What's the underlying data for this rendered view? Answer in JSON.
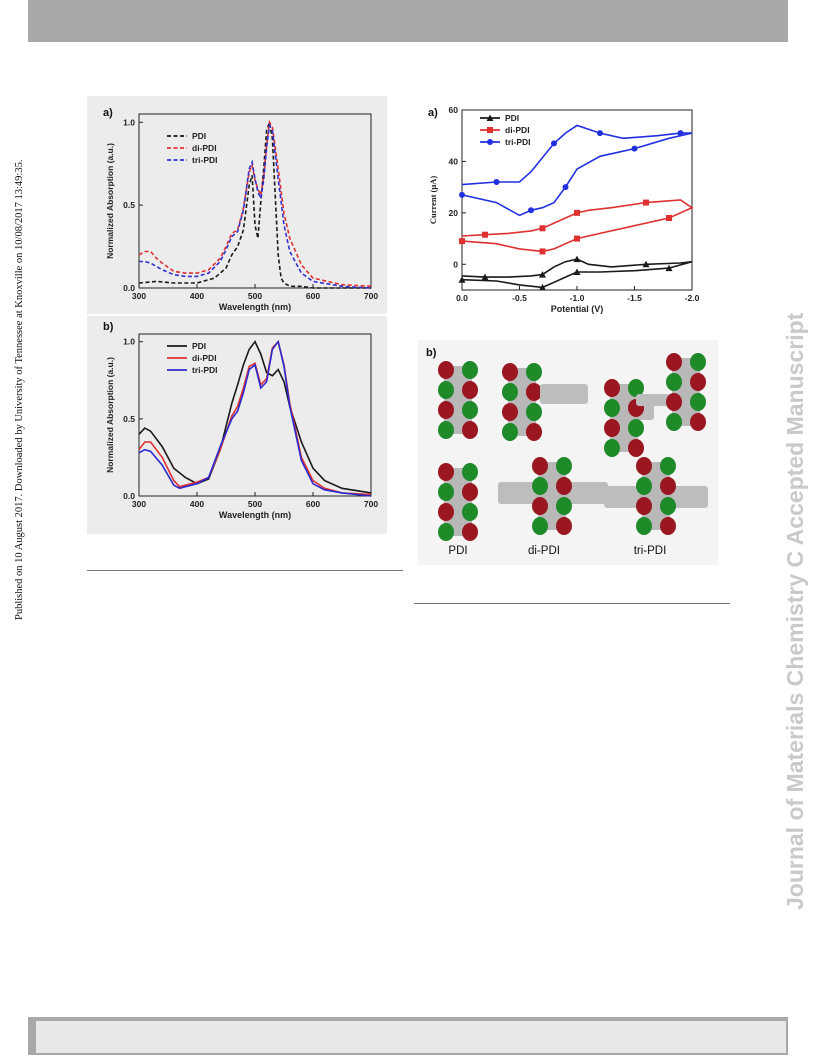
{
  "page": {
    "side_note": "Published on 10 August 2017. Downloaded by University of Tennessee at Knoxville on 10/08/2017 13:49:35.",
    "watermark": "Journal of Materials Chemistry C Accepted Manuscript",
    "molecule_labels": [
      "PDI",
      "di-PDI",
      "tri-PDI"
    ],
    "panel_b_right_label": "b)"
  },
  "chart_data": [
    {
      "type": "line",
      "panel": "a)",
      "xlabel": "Wavelength (nm)",
      "ylabel": "Normalized Absorption (a.u.)",
      "xlim": [
        300,
        700
      ],
      "ylim": [
        0,
        1.05
      ],
      "xticks": [
        "300",
        "400",
        "500",
        "600",
        "700"
      ],
      "yticks": [
        "0.0",
        "0.5",
        "1.0"
      ],
      "legend": "top-left",
      "line_style": "dashed",
      "series": [
        {
          "name": "PDI",
          "color": "#1a1a1a",
          "x": [
            300,
            330,
            360,
            400,
            430,
            450,
            460,
            470,
            480,
            490,
            495,
            500,
            505,
            510,
            515,
            520,
            525,
            530,
            535,
            540,
            545,
            550,
            560,
            580,
            600,
            650,
            700
          ],
          "y": [
            0.03,
            0.04,
            0.03,
            0.03,
            0.06,
            0.12,
            0.2,
            0.25,
            0.35,
            0.62,
            0.68,
            0.38,
            0.3,
            0.52,
            0.72,
            0.95,
            1.0,
            0.9,
            0.55,
            0.2,
            0.06,
            0.03,
            0.01,
            0.01,
            0.0,
            0.0,
            0.0
          ]
        },
        {
          "name": "di-PDI",
          "color": "#e03030",
          "x": [
            300,
            310,
            320,
            330,
            340,
            360,
            380,
            400,
            420,
            440,
            450,
            460,
            470,
            480,
            490,
            495,
            500,
            505,
            510,
            515,
            520,
            525,
            530,
            540,
            550,
            560,
            580,
            600,
            650,
            700
          ],
          "y": [
            0.2,
            0.22,
            0.22,
            0.18,
            0.15,
            0.1,
            0.09,
            0.09,
            0.11,
            0.18,
            0.25,
            0.33,
            0.35,
            0.48,
            0.7,
            0.74,
            0.65,
            0.6,
            0.56,
            0.67,
            0.86,
            1.0,
            0.97,
            0.72,
            0.45,
            0.3,
            0.14,
            0.06,
            0.02,
            0.01
          ]
        },
        {
          "name": "tri-PDI",
          "color": "#3030d0",
          "x": [
            300,
            310,
            320,
            330,
            340,
            360,
            380,
            400,
            420,
            440,
            450,
            460,
            470,
            480,
            490,
            495,
            500,
            505,
            510,
            515,
            520,
            525,
            530,
            540,
            550,
            560,
            580,
            600,
            650,
            700
          ],
          "y": [
            0.16,
            0.16,
            0.15,
            0.13,
            0.11,
            0.08,
            0.07,
            0.07,
            0.09,
            0.16,
            0.23,
            0.31,
            0.34,
            0.47,
            0.72,
            0.76,
            0.66,
            0.58,
            0.54,
            0.65,
            0.85,
            0.98,
            0.95,
            0.66,
            0.38,
            0.22,
            0.09,
            0.04,
            0.01,
            0.0
          ]
        }
      ]
    },
    {
      "type": "line",
      "panel": "b)",
      "xlabel": "Wavelength (nm)",
      "ylabel": "Normalized Absorption (a.u.)",
      "xlim": [
        300,
        700
      ],
      "ylim": [
        0,
        1.05
      ],
      "xticks": [
        "300",
        "400",
        "500",
        "600",
        "700"
      ],
      "yticks": [
        "0.0",
        "0.5",
        "1.0"
      ],
      "legend": "top-left",
      "line_style": "solid",
      "series": [
        {
          "name": "PDI",
          "color": "#1a1a1a",
          "x": [
            300,
            310,
            320,
            340,
            360,
            370,
            380,
            400,
            420,
            440,
            460,
            470,
            480,
            490,
            500,
            510,
            520,
            530,
            540,
            550,
            560,
            580,
            600,
            620,
            650,
            700
          ],
          "y": [
            0.4,
            0.44,
            0.42,
            0.32,
            0.18,
            0.15,
            0.12,
            0.08,
            0.11,
            0.3,
            0.6,
            0.72,
            0.85,
            0.95,
            1.0,
            0.92,
            0.8,
            0.78,
            0.82,
            0.74,
            0.58,
            0.35,
            0.18,
            0.1,
            0.05,
            0.02
          ]
        },
        {
          "name": "di-PDI",
          "color": "#e03030",
          "x": [
            300,
            310,
            320,
            340,
            360,
            370,
            380,
            400,
            420,
            440,
            460,
            470,
            480,
            490,
            500,
            510,
            520,
            530,
            540,
            550,
            560,
            580,
            600,
            620,
            650,
            700
          ],
          "y": [
            0.3,
            0.35,
            0.35,
            0.25,
            0.1,
            0.06,
            0.07,
            0.09,
            0.12,
            0.3,
            0.52,
            0.58,
            0.7,
            0.84,
            0.86,
            0.72,
            0.76,
            0.96,
            1.0,
            0.85,
            0.6,
            0.25,
            0.1,
            0.05,
            0.02,
            0.01
          ]
        },
        {
          "name": "tri-PDI",
          "color": "#2a2ad0",
          "x": [
            300,
            310,
            320,
            340,
            360,
            370,
            380,
            400,
            420,
            440,
            460,
            470,
            480,
            490,
            500,
            510,
            520,
            530,
            540,
            550,
            560,
            580,
            600,
            620,
            650,
            700
          ],
          "y": [
            0.28,
            0.3,
            0.29,
            0.2,
            0.07,
            0.05,
            0.06,
            0.08,
            0.12,
            0.32,
            0.5,
            0.55,
            0.67,
            0.82,
            0.85,
            0.7,
            0.74,
            0.95,
            1.0,
            0.84,
            0.58,
            0.23,
            0.08,
            0.04,
            0.02,
            0.0
          ]
        }
      ]
    },
    {
      "type": "line",
      "panel": "a)",
      "xlabel": "Potential (V)",
      "ylabel": "Current (μA)",
      "xlim": [
        0.0,
        -2.0
      ],
      "ylim": [
        -10,
        60
      ],
      "xticks": [
        "0.0",
        "-0.5",
        "-1.0",
        "-1.5",
        "-2.0"
      ],
      "yticks": [
        "0",
        "20",
        "40",
        "60"
      ],
      "legend": "top-left",
      "line_style": "solid",
      "series": [
        {
          "name": "PDI",
          "color": "#1a1a1a",
          "marker": "triangle",
          "x": [
            0.0,
            -0.3,
            -0.5,
            -0.7,
            -0.8,
            -0.9,
            -1.0,
            -1.2,
            -1.5,
            -1.8,
            -2.0,
            -1.9,
            -1.6,
            -1.3,
            -1.1,
            -1.0,
            -0.9,
            -0.8,
            -0.7,
            -0.6,
            -0.4,
            -0.2,
            0.0
          ],
          "y": [
            -6,
            -6.5,
            -8,
            -9,
            -7,
            -5,
            -3,
            -3,
            -2.5,
            -1.5,
            1,
            0.5,
            0,
            -1,
            0,
            2,
            1,
            -1,
            -4,
            -4.5,
            -5,
            -5,
            -4.5
          ]
        },
        {
          "name": "di-PDI",
          "color": "#e03030",
          "marker": "square",
          "x": [
            0.0,
            -0.3,
            -0.5,
            -0.7,
            -0.8,
            -0.9,
            -1.0,
            -1.2,
            -1.5,
            -1.8,
            -2.0,
            -1.9,
            -1.6,
            -1.3,
            -1.1,
            -1.0,
            -0.9,
            -0.8,
            -0.7,
            -0.6,
            -0.4,
            -0.2,
            0.0
          ],
          "y": [
            9,
            8,
            6,
            5,
            6,
            8,
            10,
            12,
            15,
            18,
            22,
            25,
            24,
            22,
            21,
            20,
            18,
            16,
            14,
            13,
            12,
            11.5,
            11
          ]
        },
        {
          "name": "tri-PDI",
          "color": "#2030e0",
          "marker": "circle",
          "x": [
            0.0,
            -0.3,
            -0.5,
            -0.6,
            -0.7,
            -0.8,
            -0.9,
            -1.0,
            -1.2,
            -1.5,
            -1.8,
            -2.0,
            -1.9,
            -1.7,
            -1.4,
            -1.2,
            -1.0,
            -0.9,
            -0.8,
            -0.6,
            -0.5,
            -0.3,
            0.0
          ],
          "y": [
            27,
            24,
            19,
            21,
            22,
            24,
            30,
            37,
            42,
            45,
            49,
            51,
            51,
            50,
            49,
            51,
            54,
            51,
            47,
            36,
            32,
            32,
            31
          ]
        }
      ]
    }
  ]
}
